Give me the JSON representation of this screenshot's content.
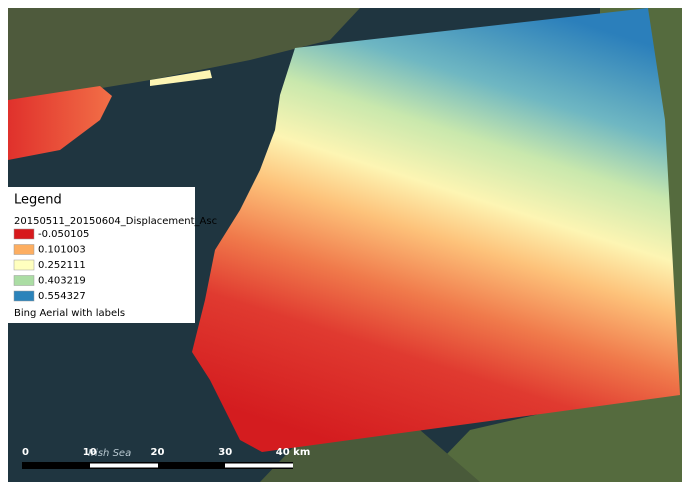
{
  "legend": {
    "title": "Legend",
    "layer": "20150511_20150604_Displacement_Asc",
    "entries": [
      {
        "label": "-0.050105",
        "color": "#d7191c"
      },
      {
        "label": "0.101003",
        "color": "#fdae61"
      },
      {
        "label": "0.252111",
        "color": "#ffffbf"
      },
      {
        "label": "0.403219",
        "color": "#abdda4"
      },
      {
        "label": "0.554327",
        "color": "#2b83ba"
      }
    ],
    "basemap": "Bing Aerial with labels"
  },
  "map": {
    "sea_label": "Irish Sea"
  },
  "scale_bar": {
    "labels": [
      "0",
      "10",
      "20",
      "30",
      "40 km"
    ]
  }
}
